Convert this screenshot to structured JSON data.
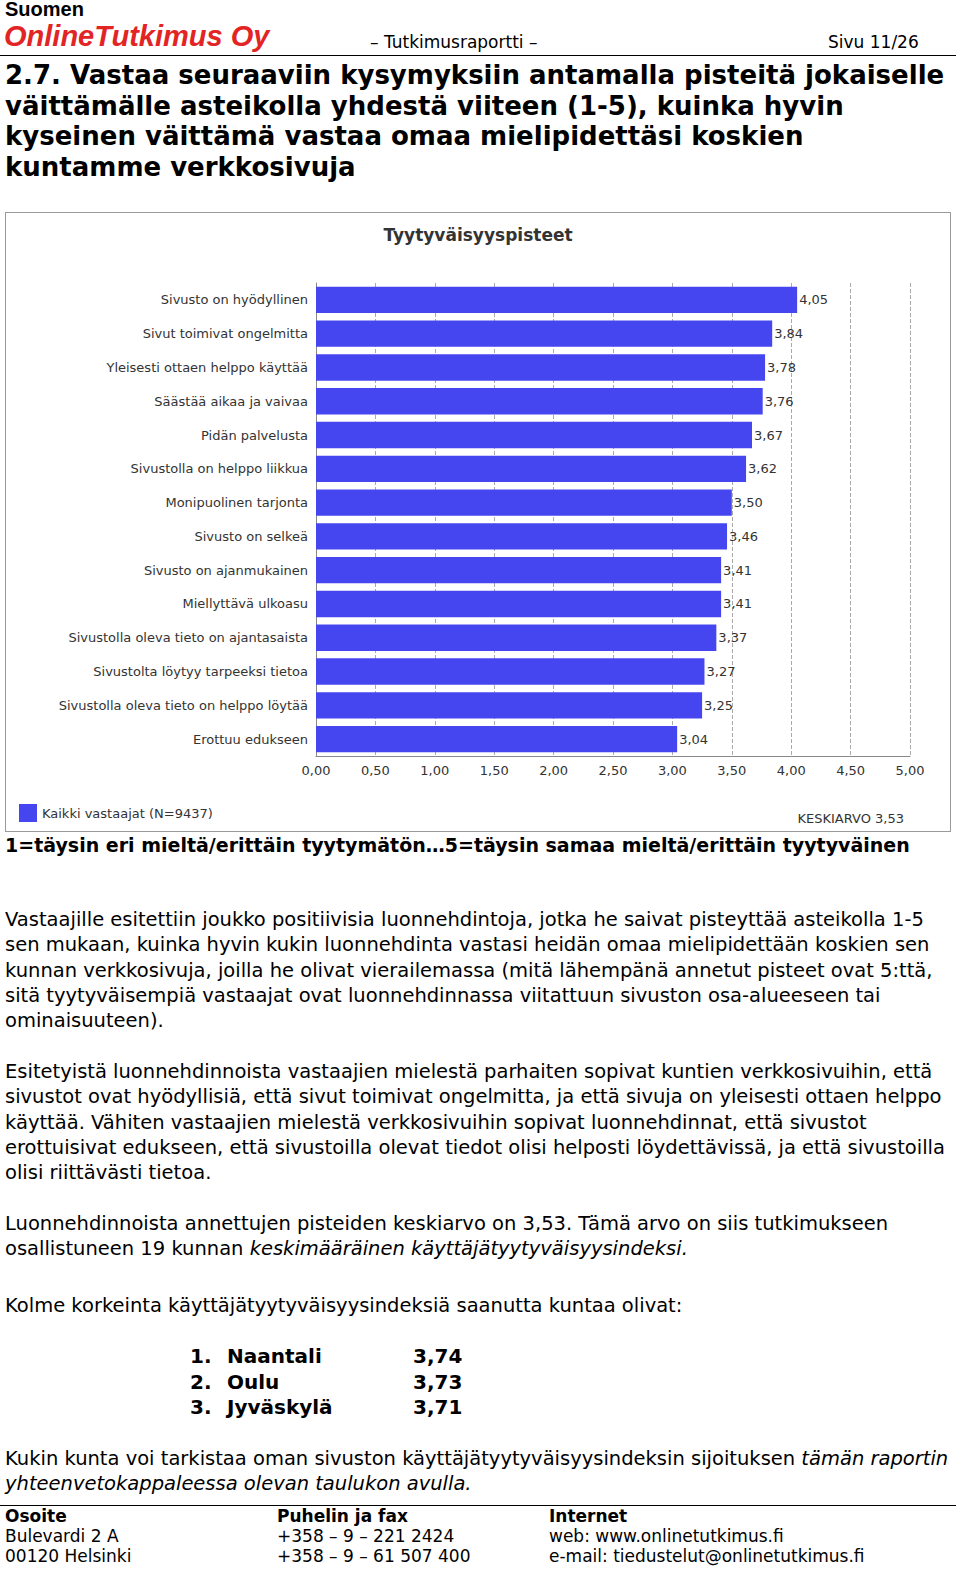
{
  "header": {
    "company_line1": "Suomen",
    "company_line2": "OnlineTutkimus Oy",
    "report": "– Tutkimusraportti –",
    "page": "Sivu 11/26"
  },
  "heading": "2.7. Vastaa seuraaviin kysymyksiin antamalla pisteitä jokaiselle väittämälle asteikolla yhdestä viiteen (1-5), kuinka hyvin kyseinen väittämä vastaa omaa mielipidettäsi koskien kuntamme verkkosivuja",
  "chart_data": {
    "type": "bar",
    "orientation": "horizontal",
    "title": "Tyytyväisyyspisteet",
    "categories": [
      "Sivusto on hyödyllinen",
      "Sivut toimivat ongelmitta",
      "Yleisesti ottaen helppo käyttää",
      "Säästää aikaa ja vaivaa",
      "Pidän palvelusta",
      "Sivustolla on helppo liikkua",
      "Monipuolinen tarjonta",
      "Sivusto on selkeä",
      "Sivusto on ajanmukainen",
      "Miellyttävä ulkoasu",
      "Sivustolla oleva tieto on ajantasaista",
      "Sivustolta löytyy tarpeeksi tietoa",
      "Sivustolla oleva tieto on helppo löytää",
      "Erottuu edukseen"
    ],
    "series": [
      {
        "name": "Kaikki vastaajat (N=9437)",
        "color": "#4646f0",
        "values": [
          4.05,
          3.84,
          3.78,
          3.76,
          3.67,
          3.62,
          3.5,
          3.46,
          3.41,
          3.41,
          3.37,
          3.27,
          3.25,
          3.04
        ],
        "value_labels": [
          "4,05",
          "3,84",
          "3,78",
          "3,76",
          "3,67",
          "3,62",
          "3,50",
          "3,46",
          "3,41",
          "3,41",
          "3,37",
          "3,27",
          "3,25",
          "3,04"
        ]
      }
    ],
    "xlim": [
      0,
      5
    ],
    "xticks": [
      {
        "value": 0,
        "label": "0,00"
      },
      {
        "value": 0.5,
        "label": "0,50"
      },
      {
        "value": 1,
        "label": "1,00"
      },
      {
        "value": 1.5,
        "label": "1,50"
      },
      {
        "value": 2,
        "label": "2,00"
      },
      {
        "value": 2.5,
        "label": "2,50"
      },
      {
        "value": 3,
        "label": "3,00"
      },
      {
        "value": 3.5,
        "label": "3,50"
      },
      {
        "value": 4,
        "label": "4,00"
      },
      {
        "value": 4.5,
        "label": "4,50"
      },
      {
        "value": 5,
        "label": "5,00"
      }
    ],
    "grid": true,
    "data_labels": true,
    "legend": "bottom-left",
    "annotation": "KESKIARVO 3,53"
  },
  "scale_note": "1=täysin eri mieltä/erittäin tyytymätön…5=täysin samaa mieltä/erittäin tyytyväinen",
  "paragraphs": [
    {
      "text": "Vastaajille esitettiin joukko positiivisia luonnehdintoja, jotka he saivat pisteyttää asteikolla 1-5 sen mukaan, kuinka hyvin kukin luonnehdinta vastasi heidän omaa mielipidettään koskien sen kunnan verkkosivuja, joilla he olivat vierailemassa (mitä lähempänä annetut pisteet ovat 5:ttä, sitä tyytyväisempiä vastaajat ovat luonnehdinnassa viitattuun sivuston osa-alueeseen tai ominaisuuteen)."
    },
    {
      "text": "Esitetyistä luonnehdinnoista vastaajien mielestä parhaiten sopivat kuntien verkkosivuihin, että sivustot ovat hyödyllisiä, että sivut toimivat ongelmitta, ja että sivuja on yleisesti ottaen helppo käyttää. Vähiten vastaajien mielestä verkkosivuihin sopivat luonnehdinnat, että sivustot erottuisivat edukseen, että sivustoilla olevat tiedot olisi helposti löydettävissä, ja että sivustoilla olisi riittävästi tietoa."
    },
    {
      "text": "Luonnehdinnoista annettujen pisteiden keskiarvo on 3,53. Tämä arvo on siis tutkimukseen osallistuneen 19 kunnan ",
      "emphasis": "keskimääräinen käyttäjätyytyväisyysindeksi."
    },
    {
      "text": "Kolme korkeinta käyttäjätyytyväisyysindeksiä saanutta kuntaa olivat:"
    }
  ],
  "ranking": [
    {
      "rank": "1.",
      "name": "Naantali",
      "score": "3,74"
    },
    {
      "rank": "2.",
      "name": "Oulu",
      "score": "3,73"
    },
    {
      "rank": "3.",
      "name": "Jyväskylä",
      "score": "3,71"
    }
  ],
  "closing": {
    "text": "Kukin kunta voi tarkistaa oman sivuston käyttäjätyytyväisyysindeksin sijoituksen ",
    "emphasis": "tämän raportin yhteenvetokappaleessa olevan taulukon avulla."
  },
  "footer": [
    {
      "label": "Osoite",
      "lines": [
        "Bulevardi 2 A",
        "00120 Helsinki"
      ]
    },
    {
      "label": "Puhelin ja fax",
      "lines": [
        "+358 – 9 – 221 2424",
        "+358 – 9 – 61 507 400"
      ]
    },
    {
      "label": "Internet",
      "lines": [
        "web: www.onlinetutkimus.fi",
        "e-mail: tiedustelut@onlinetutkimus.fi"
      ]
    }
  ]
}
